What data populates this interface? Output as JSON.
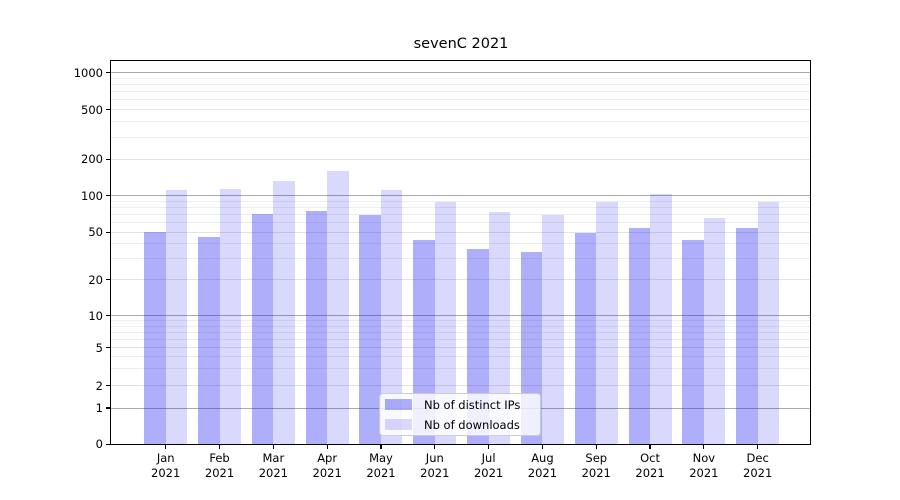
{
  "title": "sevenC 2021",
  "chart_data": {
    "type": "bar",
    "title": "sevenC 2021",
    "categories": [
      "Jan 2021",
      "Feb 2021",
      "Mar 2021",
      "Apr 2021",
      "May 2021",
      "Jun 2021",
      "Jul 2021",
      "Aug 2021",
      "Sep 2021",
      "Oct 2021",
      "Nov 2021",
      "Dec 2021"
    ],
    "series": [
      {
        "name": "Nb of distinct IPs",
        "color": "#aeaefa",
        "fill_rgba": "rgba(13,13,242,0.335)",
        "values": [
          50,
          46,
          71,
          75,
          70,
          43,
          36,
          34,
          49,
          54,
          43,
          54
        ]
      },
      {
        "name": "Nb of downloads",
        "color": "#d9d9fc",
        "fill_rgba": "rgba(13,13,242,0.155)",
        "values": [
          111,
          114,
          132,
          161,
          111,
          88,
          73,
          70,
          89,
          103,
          66,
          88
        ]
      }
    ],
    "xlabel": "",
    "ylabel": "",
    "yscale": "symlog",
    "yticks": [
      0,
      1,
      2,
      5,
      10,
      20,
      50,
      100,
      200,
      500,
      1000
    ],
    "ylim": [
      0,
      1070
    ],
    "grid": true,
    "legend_position": "lower center",
    "grid_colors": {
      "decade": "#ababab",
      "labeled": "#e2e2e2",
      "minor": "#ededed"
    }
  }
}
